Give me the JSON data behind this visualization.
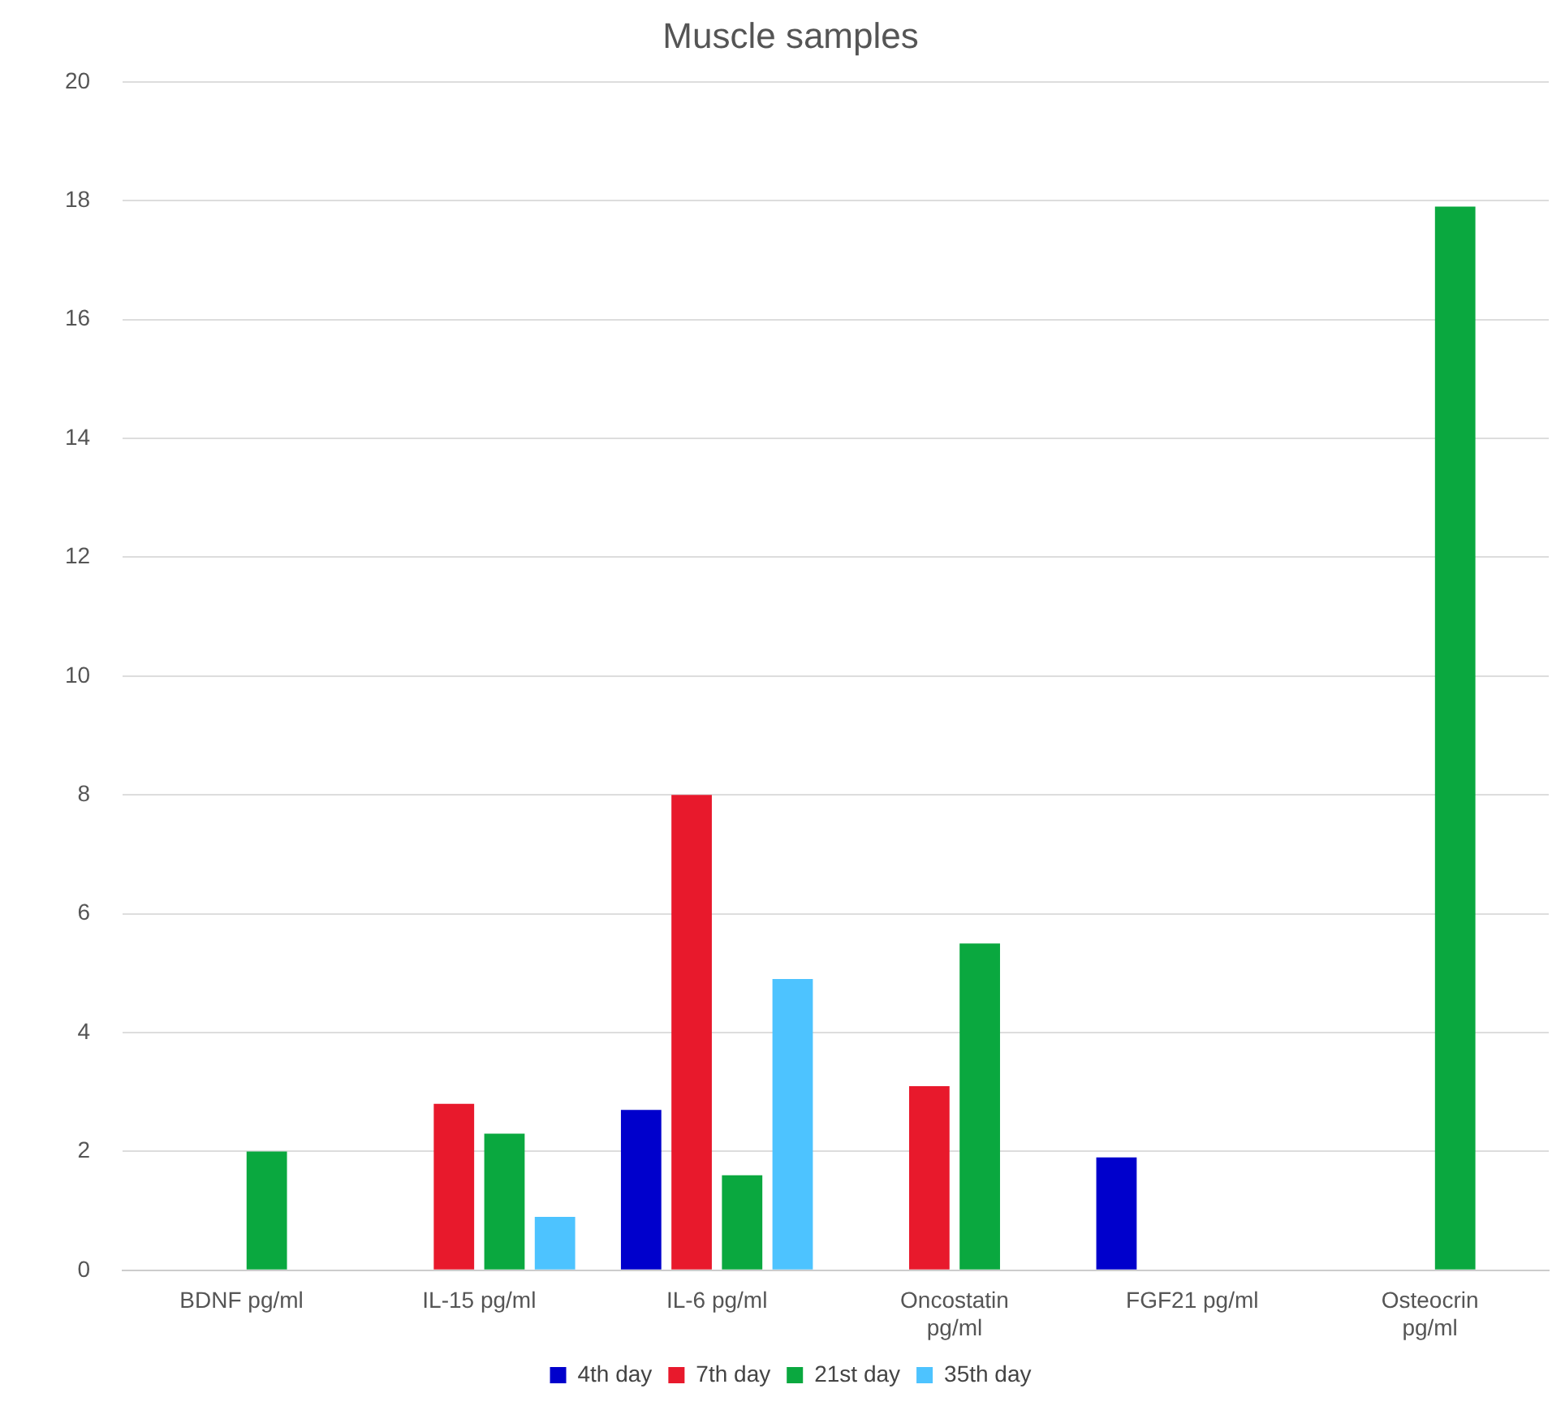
{
  "chart_data": {
    "type": "bar",
    "title": "Muscle samples",
    "categories": [
      "BDNF pg/ml",
      "IL-15 pg/ml",
      "IL-6 pg/ml",
      "Oncostatin pg/ml",
      "FGF21 pg/ml",
      "Osteocrin pg/ml"
    ],
    "series": [
      {
        "name": "4th day",
        "color": "#0000cc",
        "values": [
          null,
          null,
          2.7,
          null,
          1.9,
          null
        ]
      },
      {
        "name": "7th day",
        "color": "#e8192c",
        "values": [
          null,
          2.8,
          8.0,
          3.1,
          null,
          null
        ]
      },
      {
        "name": "21st day",
        "color": "#0aa83f",
        "values": [
          2.0,
          2.3,
          1.6,
          5.5,
          null,
          17.9
        ]
      },
      {
        "name": "35th day",
        "color": "#4dc3ff",
        "values": [
          null,
          0.9,
          4.9,
          null,
          null,
          null
        ]
      }
    ],
    "ylim": [
      0,
      20
    ],
    "yticks": [
      0,
      2,
      4,
      6,
      8,
      10,
      12,
      14,
      16,
      18,
      20
    ],
    "grid": "y",
    "legend": "bottom"
  }
}
